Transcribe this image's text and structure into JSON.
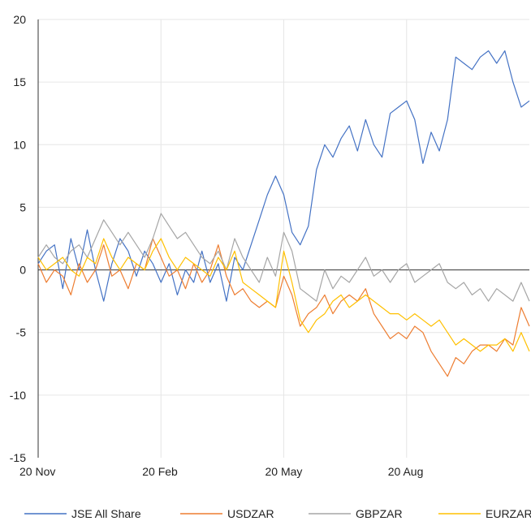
{
  "chart_data": {
    "type": "line",
    "title": "",
    "xlabel": "",
    "ylabel": "",
    "ylim": [
      -15,
      20
    ],
    "yticks": [
      -15,
      -10,
      -5,
      0,
      5,
      10,
      15,
      20
    ],
    "xlim": [
      0,
      120
    ],
    "xticks": [
      {
        "label": "20 Nov",
        "x": 0
      },
      {
        "label": "20 Feb",
        "x": 30
      },
      {
        "label": "20 May",
        "x": 60
      },
      {
        "label": "20 Aug",
        "x": 90
      }
    ],
    "grid": true,
    "legend": "bottom",
    "series": [
      {
        "name": "JSE All Share",
        "color": "#4472C4",
        "x": [
          0,
          2,
          4,
          6,
          8,
          10,
          12,
          14,
          16,
          18,
          20,
          22,
          24,
          26,
          28,
          30,
          32,
          34,
          36,
          38,
          40,
          42,
          44,
          46,
          48,
          50,
          52,
          54,
          56,
          58,
          60,
          62,
          64,
          66,
          68,
          70,
          72,
          74,
          76,
          78,
          80,
          82,
          84,
          86,
          88,
          90,
          92,
          94,
          96,
          98,
          100,
          102,
          104,
          106,
          108,
          110,
          112,
          114,
          116,
          118,
          120
        ],
        "values": [
          0.5,
          1.5,
          2.0,
          -1.5,
          2.5,
          0,
          3.2,
          0,
          -2.5,
          0.5,
          2.5,
          1.5,
          -0.5,
          1.5,
          0.5,
          -1.0,
          0.5,
          -2.0,
          0,
          -1.0,
          1.5,
          -1.0,
          0.5,
          -2.5,
          1.0,
          0,
          2.0,
          4.0,
          6.0,
          7.5,
          6.0,
          3.0,
          2.0,
          3.5,
          8.0,
          10.0,
          9.0,
          10.5,
          11.5,
          9.5,
          12.0,
          10.0,
          9.0,
          12.5,
          13.0,
          13.5,
          12.0,
          8.5,
          11.0,
          9.5,
          12.0,
          17.0,
          16.5,
          16.0,
          17.0,
          17.5,
          16.5,
          17.5,
          15.0,
          13.0,
          13.5
        ]
      },
      {
        "name": "USDZAR",
        "color": "#ED7D31",
        "x": [
          0,
          2,
          4,
          6,
          8,
          10,
          12,
          14,
          16,
          18,
          20,
          22,
          24,
          26,
          28,
          30,
          32,
          34,
          36,
          38,
          40,
          42,
          44,
          46,
          48,
          50,
          52,
          54,
          56,
          58,
          60,
          62,
          64,
          66,
          68,
          70,
          72,
          74,
          76,
          78,
          80,
          82,
          84,
          86,
          88,
          90,
          92,
          94,
          96,
          98,
          100,
          102,
          104,
          106,
          108,
          110,
          112,
          114,
          116,
          118,
          120
        ],
        "values": [
          0.5,
          -1.0,
          0,
          -0.5,
          -2.0,
          0.5,
          -1.0,
          0,
          2.0,
          -0.5,
          0,
          -1.5,
          0.5,
          0,
          2.5,
          1.0,
          -0.5,
          0,
          -1.5,
          0.5,
          -1.0,
          0,
          2.0,
          -0.5,
          -2.0,
          -1.5,
          -2.5,
          -3.0,
          -2.5,
          -3.0,
          -0.5,
          -2.0,
          -4.5,
          -3.5,
          -3.0,
          -2.0,
          -3.5,
          -2.5,
          -2.0,
          -2.5,
          -1.5,
          -3.5,
          -4.5,
          -5.5,
          -5.0,
          -5.5,
          -4.5,
          -5.0,
          -6.5,
          -7.5,
          -8.5,
          -7.0,
          -7.5,
          -6.5,
          -6.0,
          -6.0,
          -6.5,
          -5.5,
          -6.0,
          -3.0,
          -4.5
        ]
      },
      {
        "name": "GBPZAR",
        "color": "#A5A5A5",
        "x": [
          0,
          2,
          4,
          6,
          8,
          10,
          12,
          14,
          16,
          18,
          20,
          22,
          24,
          26,
          28,
          30,
          32,
          34,
          36,
          38,
          40,
          42,
          44,
          46,
          48,
          50,
          52,
          54,
          56,
          58,
          60,
          62,
          64,
          66,
          68,
          70,
          72,
          74,
          76,
          78,
          80,
          82,
          84,
          86,
          88,
          90,
          92,
          94,
          96,
          98,
          100,
          102,
          104,
          106,
          108,
          110,
          112,
          114,
          116,
          118,
          120
        ],
        "values": [
          1.0,
          2.0,
          1.0,
          0.5,
          1.5,
          2.0,
          1.0,
          2.5,
          4.0,
          3.0,
          2.0,
          3.0,
          2.0,
          1.0,
          2.5,
          4.5,
          3.5,
          2.5,
          3.0,
          2.0,
          1.0,
          0.5,
          1.5,
          0,
          2.5,
          1.0,
          0,
          -1.0,
          1.0,
          -0.5,
          3.0,
          1.5,
          -1.5,
          -2.0,
          -2.5,
          0,
          -1.5,
          -0.5,
          -1.0,
          0,
          1.0,
          -0.5,
          0,
          -1.0,
          0,
          0.5,
          -1.0,
          -0.5,
          0,
          0.5,
          -1.0,
          -1.5,
          -1.0,
          -2.0,
          -1.5,
          -2.5,
          -1.5,
          -2.0,
          -2.5,
          -1.0,
          -2.5
        ]
      },
      {
        "name": "EURZAR",
        "color": "#FFC000",
        "x": [
          0,
          2,
          4,
          6,
          8,
          10,
          12,
          14,
          16,
          18,
          20,
          22,
          24,
          26,
          28,
          30,
          32,
          34,
          36,
          38,
          40,
          42,
          44,
          46,
          48,
          50,
          52,
          54,
          56,
          58,
          60,
          62,
          64,
          66,
          68,
          70,
          72,
          74,
          76,
          78,
          80,
          82,
          84,
          86,
          88,
          90,
          92,
          94,
          96,
          98,
          100,
          102,
          104,
          106,
          108,
          110,
          112,
          114,
          116,
          118,
          120
        ],
        "values": [
          1.0,
          0,
          0.5,
          1.0,
          0,
          -0.5,
          1.0,
          0.5,
          2.5,
          1.0,
          0,
          1.0,
          0.5,
          0,
          1.5,
          2.5,
          1.0,
          0,
          1.0,
          0.5,
          0,
          -0.5,
          1.0,
          0,
          1.5,
          -1.0,
          -1.5,
          -2.0,
          -2.5,
          -3.0,
          1.5,
          -1.0,
          -4.0,
          -5.0,
          -4.0,
          -3.5,
          -2.5,
          -2.0,
          -3.0,
          -2.5,
          -2.0,
          -2.5,
          -3.0,
          -3.5,
          -3.5,
          -4.0,
          -3.5,
          -4.0,
          -4.5,
          -4.0,
          -5.0,
          -6.0,
          -5.5,
          -6.0,
          -6.5,
          -6.0,
          -6.0,
          -5.5,
          -6.5,
          -5.0,
          -6.5
        ]
      }
    ]
  }
}
